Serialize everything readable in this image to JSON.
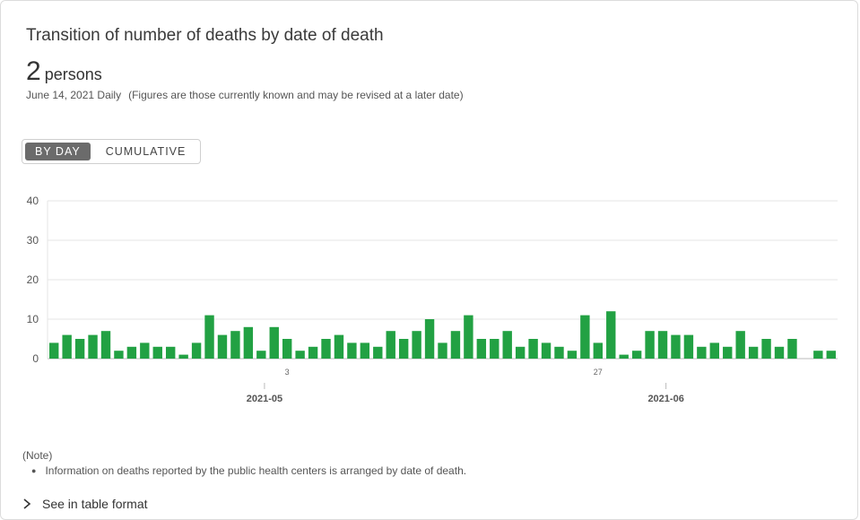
{
  "title": "Transition of number of deaths by date of death",
  "summary": {
    "value": "2",
    "unit": "persons",
    "date_label": "June 14, 2021 Daily",
    "note": "(Figures are those currently known and may be revised at a later date)"
  },
  "toggle": {
    "by_day_label": "BY DAY",
    "cumulative_label": "CUMULATIVE",
    "active": "by_day"
  },
  "notes": {
    "heading": "(Note)",
    "items": [
      "Information on deaths reported by the public health centers is arranged by date of death."
    ]
  },
  "table_link_label": "See in table format",
  "colors": {
    "bar": "#22a143",
    "grid": "#e6e6e6",
    "axis": "#bbbbbb"
  },
  "chart_data": {
    "type": "bar",
    "title": "",
    "xlabel": "",
    "ylabel": "",
    "ylim": [
      0,
      40
    ],
    "yticks": [
      0,
      10,
      20,
      30,
      40
    ],
    "grid": true,
    "series": [
      {
        "values": [
          4,
          6,
          5,
          6,
          7,
          2,
          3,
          4,
          3,
          3,
          1,
          4,
          11,
          6,
          7,
          8,
          2,
          8,
          5,
          2,
          3,
          5,
          6,
          4,
          4,
          3,
          7,
          5,
          7,
          10,
          4,
          7,
          11,
          5,
          5,
          7,
          3,
          5,
          4,
          3,
          2,
          11,
          4,
          12,
          1,
          2,
          7,
          7,
          6,
          6,
          3,
          4,
          3,
          7,
          3,
          5,
          3,
          5,
          0,
          2,
          2
        ]
      }
    ],
    "x_day_ticks": [
      {
        "index": 18,
        "label": "3"
      },
      {
        "index": 42,
        "label": "27"
      }
    ],
    "x_month_ticks": [
      {
        "index": 16,
        "label": "2021-05"
      },
      {
        "index": 47,
        "label": "2021-06"
      }
    ]
  }
}
